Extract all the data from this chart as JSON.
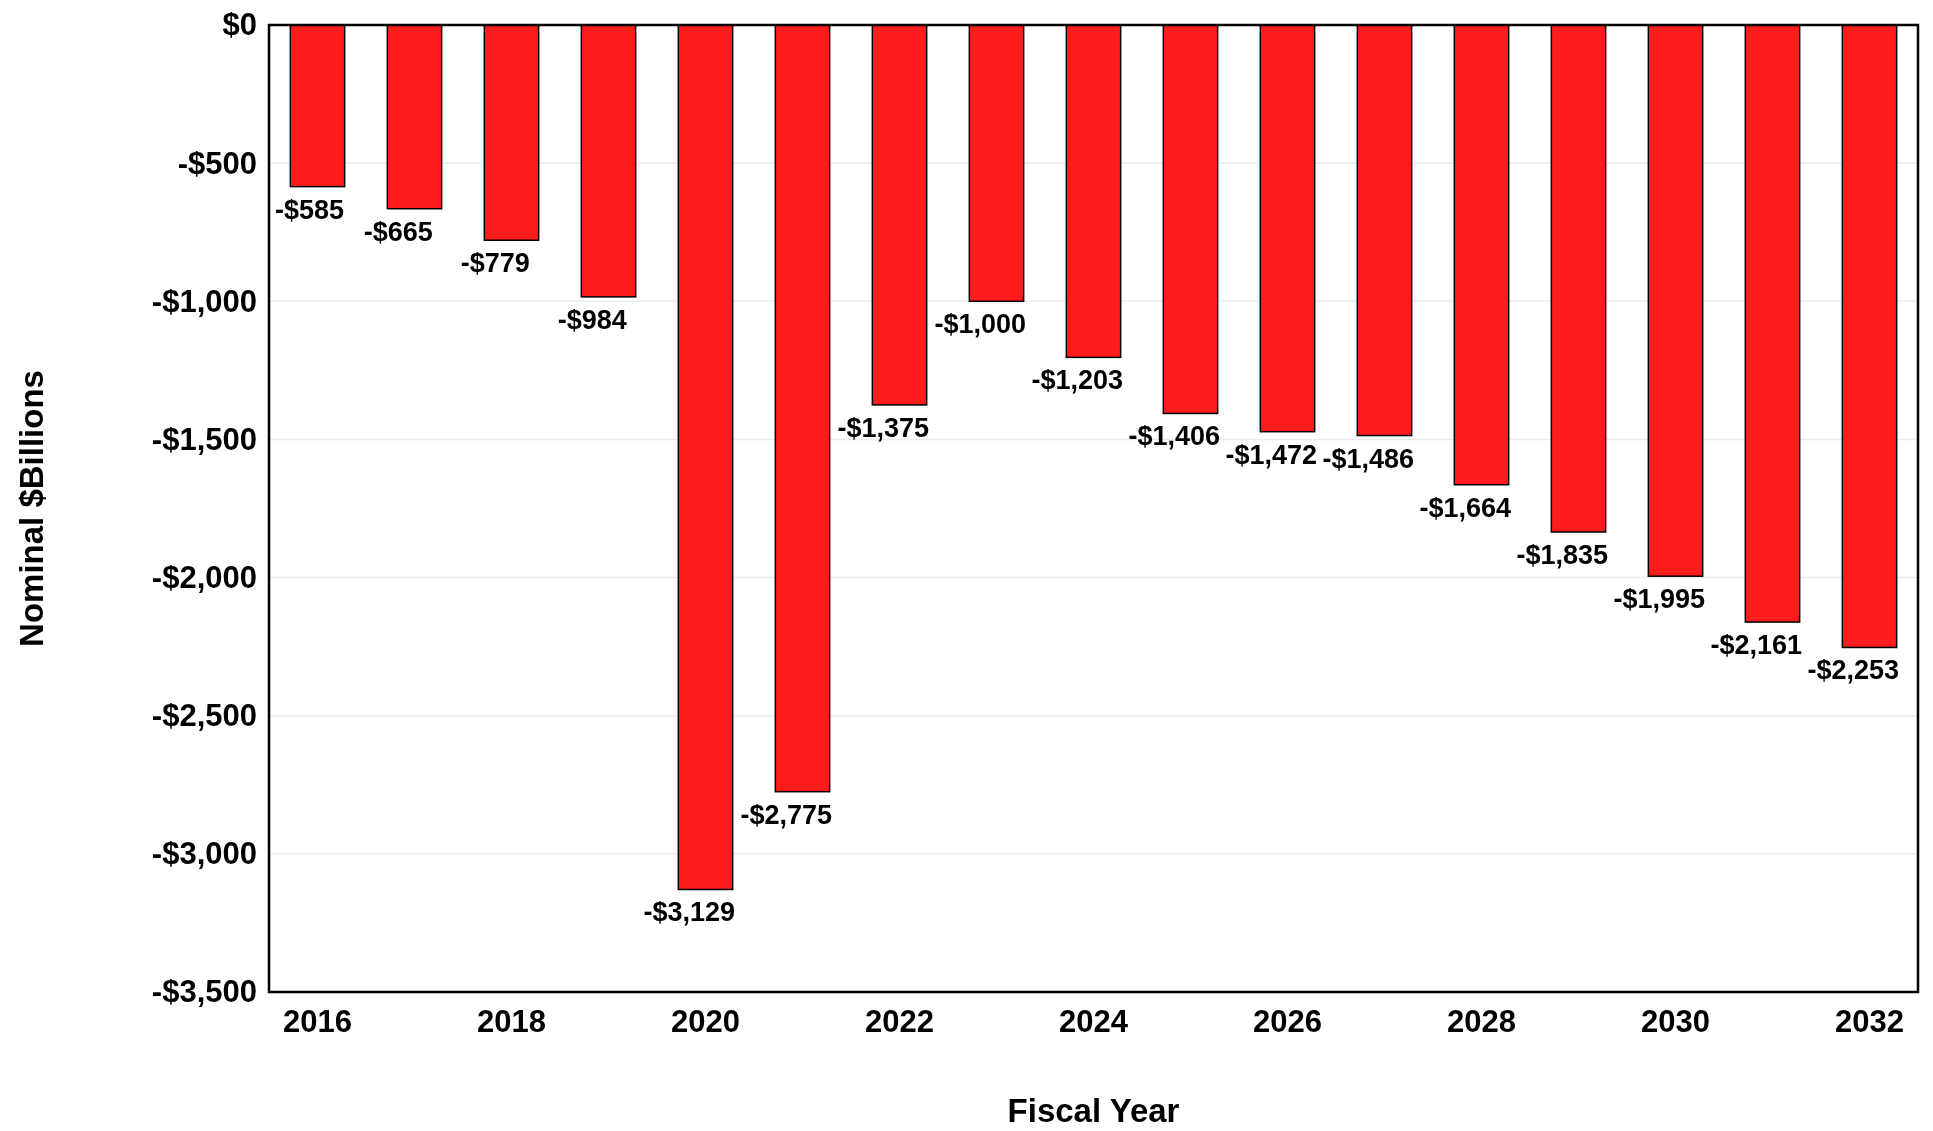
{
  "chart_data": {
    "type": "bar",
    "xlabel": "Fiscal Year",
    "ylabel": "Nominal $Billions",
    "categories": [
      "2016",
      null,
      "2018",
      null,
      "2020",
      null,
      "2022",
      null,
      "2024",
      null,
      "2026",
      null,
      "2028",
      null,
      "2030",
      null,
      "2032"
    ],
    "values": [
      -585,
      -665,
      -779,
      -984,
      -3129,
      -2775,
      -1375,
      -1000,
      -1203,
      -1406,
      -1472,
      -1486,
      -1664,
      -1835,
      -1995,
      -2161,
      -2253
    ],
    "value_labels": [
      "-$585",
      "-$665",
      "-$779",
      "-$984",
      "-$3,129",
      "-$2,775",
      "-$1,375",
      "-$1,000",
      "-$1,203",
      "-$1,406",
      "-$1,472",
      "-$1,486",
      "-$1,664",
      "-$1,835",
      "-$1,995",
      "-$2,161",
      "-$2,253"
    ],
    "color": "#ff1c1c",
    "ylim": [
      -3500,
      0
    ],
    "yticks": [
      {
        "value": -3500,
        "label": "-$3,500"
      },
      {
        "value": -3000,
        "label": "-$3,000"
      },
      {
        "value": -2500,
        "label": "-$2,500"
      },
      {
        "value": -2000,
        "label": "-$2,000"
      },
      {
        "value": -1500,
        "label": "-$1,500"
      },
      {
        "value": -1000,
        "label": "-$1,000"
      },
      {
        "value": -500,
        "label": "-$500"
      },
      {
        "value": 0,
        "label": "$0"
      }
    ],
    "grid": "y"
  }
}
